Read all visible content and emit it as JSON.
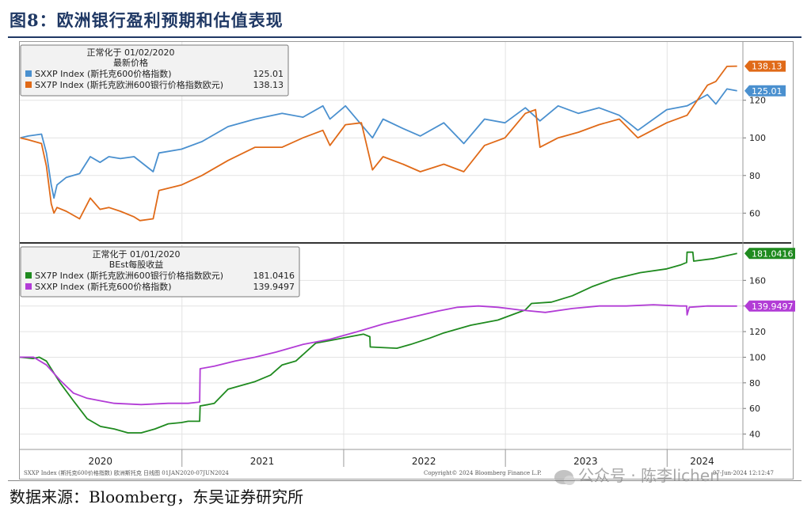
{
  "figure_title": "图8：欧洲银行盈利预期和估值表现",
  "source_note": "数据来源：Bloomberg，东吴证券研究所",
  "footer": {
    "left_text": "SXXP Index (斯托克600价格指数) 欧洲斯托克   日线图 01JAN2020-07JUN2024",
    "copyright": "Copyright© 2024 Bloomberg Finance L.P.",
    "timestamp": "07-Jun-2024 12:12:47"
  },
  "watermark": "公众号 · 陈李lichen",
  "colors": {
    "blue": "#4a90cf",
    "orange": "#e06a18",
    "green": "#1f8a1f",
    "purple": "#b23cd6"
  },
  "chart_data": [
    {
      "type": "line",
      "legend": {
        "header1": "正常化于 01/02/2020",
        "header2": "最新价格",
        "placement": "top-left"
      },
      "series": [
        {
          "name": "SXXP Index (斯托克600价格指数)",
          "last_label": "125.01",
          "color": "#4a90cf",
          "points": [
            [
              "2020-01-02",
              100
            ],
            [
              "2020-01-20",
              101
            ],
            [
              "2020-02-19",
              102
            ],
            [
              "2020-03-01",
              92
            ],
            [
              "2020-03-12",
              75
            ],
            [
              "2020-03-18",
              68
            ],
            [
              "2020-03-25",
              75
            ],
            [
              "2020-04-15",
              79
            ],
            [
              "2020-05-15",
              81
            ],
            [
              "2020-06-08",
              90
            ],
            [
              "2020-06-30",
              87
            ],
            [
              "2020-07-20",
              90
            ],
            [
              "2020-08-15",
              89
            ],
            [
              "2020-09-15",
              90
            ],
            [
              "2020-10-28",
              82
            ],
            [
              "2020-11-10",
              92
            ],
            [
              "2020-12-31",
              94
            ],
            [
              "2021-02-15",
              98
            ],
            [
              "2021-04-15",
              106
            ],
            [
              "2021-06-15",
              110
            ],
            [
              "2021-08-15",
              113
            ],
            [
              "2021-10-01",
              111
            ],
            [
              "2021-11-15",
              117
            ],
            [
              "2021-12-01",
              110
            ],
            [
              "2022-01-05",
              117
            ],
            [
              "2022-03-07",
              100
            ],
            [
              "2022-03-31",
              110
            ],
            [
              "2022-05-15",
              105
            ],
            [
              "2022-06-23",
              101
            ],
            [
              "2022-08-15",
              108
            ],
            [
              "2022-09-29",
              97
            ],
            [
              "2022-11-15",
              110
            ],
            [
              "2022-12-31",
              108
            ],
            [
              "2023-02-15",
              116
            ],
            [
              "2023-03-20",
              109
            ],
            [
              "2023-04-30",
              117
            ],
            [
              "2023-06-15",
              113
            ],
            [
              "2023-07-31",
              116
            ],
            [
              "2023-09-15",
              112
            ],
            [
              "2023-10-27",
              104
            ],
            [
              "2023-12-31",
              115
            ],
            [
              "2024-02-15",
              117
            ],
            [
              "2024-04-01",
              123
            ],
            [
              "2024-04-20",
              118
            ],
            [
              "2024-05-15",
              126
            ],
            [
              "2024-06-07",
              125.01
            ]
          ]
        },
        {
          "name": "SX7P Index (斯托克欧洲600银行价格指数欧元)",
          "last_label": "138.13",
          "color": "#e06a18",
          "points": [
            [
              "2020-01-02",
              100
            ],
            [
              "2020-01-20",
              99
            ],
            [
              "2020-02-19",
              97
            ],
            [
              "2020-03-01",
              85
            ],
            [
              "2020-03-12",
              65
            ],
            [
              "2020-03-18",
              60
            ],
            [
              "2020-03-25",
              63
            ],
            [
              "2020-04-15",
              61
            ],
            [
              "2020-05-15",
              57
            ],
            [
              "2020-06-08",
              68
            ],
            [
              "2020-06-30",
              62
            ],
            [
              "2020-07-20",
              63
            ],
            [
              "2020-08-15",
              61
            ],
            [
              "2020-09-15",
              58
            ],
            [
              "2020-09-28",
              56
            ],
            [
              "2020-10-28",
              57
            ],
            [
              "2020-11-10",
              72
            ],
            [
              "2020-12-31",
              75
            ],
            [
              "2021-02-15",
              80
            ],
            [
              "2021-04-15",
              88
            ],
            [
              "2021-06-15",
              95
            ],
            [
              "2021-08-15",
              95
            ],
            [
              "2021-10-01",
              100
            ],
            [
              "2021-11-15",
              104
            ],
            [
              "2021-12-01",
              96
            ],
            [
              "2022-01-05",
              107
            ],
            [
              "2022-02-10",
              108
            ],
            [
              "2022-03-07",
              83
            ],
            [
              "2022-03-31",
              90
            ],
            [
              "2022-05-15",
              86
            ],
            [
              "2022-06-23",
              82
            ],
            [
              "2022-08-15",
              86
            ],
            [
              "2022-09-29",
              82
            ],
            [
              "2022-11-15",
              96
            ],
            [
              "2022-12-31",
              100
            ],
            [
              "2023-02-15",
              113
            ],
            [
              "2023-03-10",
              115
            ],
            [
              "2023-03-20",
              95
            ],
            [
              "2023-04-30",
              100
            ],
            [
              "2023-06-15",
              103
            ],
            [
              "2023-07-31",
              107
            ],
            [
              "2023-09-15",
              110
            ],
            [
              "2023-10-27",
              100
            ],
            [
              "2023-12-31",
              108
            ],
            [
              "2024-02-15",
              112
            ],
            [
              "2024-03-15",
              122
            ],
            [
              "2024-04-01",
              128
            ],
            [
              "2024-04-20",
              130
            ],
            [
              "2024-05-15",
              138
            ],
            [
              "2024-06-07",
              138.13
            ]
          ]
        }
      ],
      "y_ticks": [
        60,
        80,
        100,
        120
      ],
      "ylim": [
        45,
        151
      ]
    },
    {
      "type": "line",
      "legend": {
        "header1": "正常化于 01/01/2020",
        "header2": "BEst每股收益",
        "placement": "top-left"
      },
      "series": [
        {
          "name": "SX7P Index (斯托克欧洲600银行价格指数欧元)",
          "last_label": "181.0416",
          "color": "#1f8a1f",
          "points": [
            [
              "2020-01-01",
              100
            ],
            [
              "2020-01-31",
              99
            ],
            [
              "2020-02-14",
              100
            ],
            [
              "2020-03-01",
              97
            ],
            [
              "2020-04-01",
              80
            ],
            [
              "2020-05-01",
              66
            ],
            [
              "2020-06-01",
              52
            ],
            [
              "2020-07-01",
              46
            ],
            [
              "2020-08-01",
              44
            ],
            [
              "2020-09-01",
              41
            ],
            [
              "2020-10-01",
              41
            ],
            [
              "2020-11-01",
              44
            ],
            [
              "2020-12-01",
              48
            ],
            [
              "2020-12-31",
              49
            ],
            [
              "2021-01-15",
              50
            ],
            [
              "2021-02-10",
              50
            ],
            [
              "2021-02-11",
              62
            ],
            [
              "2021-03-01",
              63
            ],
            [
              "2021-03-15",
              64
            ],
            [
              "2021-04-15",
              75
            ],
            [
              "2021-05-15",
              78
            ],
            [
              "2021-06-15",
              81
            ],
            [
              "2021-07-20",
              86
            ],
            [
              "2021-08-15",
              94
            ],
            [
              "2021-09-15",
              97
            ],
            [
              "2021-10-30",
              111
            ],
            [
              "2021-12-01",
              113
            ],
            [
              "2022-01-15",
              116
            ],
            [
              "2022-02-15",
              118
            ],
            [
              "2022-03-01",
              116
            ],
            [
              "2022-03-02",
              108
            ],
            [
              "2022-05-01",
              107
            ],
            [
              "2022-06-01",
              110
            ],
            [
              "2022-07-15",
              115
            ],
            [
              "2022-08-15",
              119
            ],
            [
              "2022-10-15",
              125
            ],
            [
              "2022-12-15",
              129
            ],
            [
              "2023-02-15",
              137
            ],
            [
              "2023-03-01",
              142
            ],
            [
              "2023-04-15",
              143
            ],
            [
              "2023-06-01",
              148
            ],
            [
              "2023-07-15",
              155
            ],
            [
              "2023-09-01",
              161
            ],
            [
              "2023-11-01",
              166
            ],
            [
              "2023-12-31",
              169
            ],
            [
              "2024-01-31",
              172
            ],
            [
              "2024-02-14",
              174
            ],
            [
              "2024-02-15",
              182
            ],
            [
              "2024-02-28",
              182
            ],
            [
              "2024-03-01",
              175
            ],
            [
              "2024-04-15",
              177
            ],
            [
              "2024-06-07",
              181.0416
            ]
          ]
        },
        {
          "name": "SXXP Index (斯托克600价格指数)",
          "last_label": "139.9497",
          "color": "#b23cd6",
          "points": [
            [
              "2020-01-01",
              100
            ],
            [
              "2020-02-01",
              100
            ],
            [
              "2020-03-01",
              94
            ],
            [
              "2020-04-01",
              82
            ],
            [
              "2020-05-01",
              72
            ],
            [
              "2020-06-01",
              68
            ],
            [
              "2020-07-01",
              66
            ],
            [
              "2020-08-01",
              64
            ],
            [
              "2020-10-01",
              63
            ],
            [
              "2020-12-01",
              64
            ],
            [
              "2020-12-31",
              64
            ],
            [
              "2021-01-15",
              64
            ],
            [
              "2021-02-10",
              65
            ],
            [
              "2021-02-11",
              91
            ],
            [
              "2021-03-15",
              93
            ],
            [
              "2021-05-01",
              97
            ],
            [
              "2021-06-15",
              100
            ],
            [
              "2021-08-01",
              104
            ],
            [
              "2021-10-01",
              110
            ],
            [
              "2021-12-01",
              114
            ],
            [
              "2022-02-01",
              120
            ],
            [
              "2022-04-01",
              126
            ],
            [
              "2022-06-01",
              131
            ],
            [
              "2022-08-01",
              136
            ],
            [
              "2022-09-15",
              139
            ],
            [
              "2022-11-01",
              140
            ],
            [
              "2022-12-15",
              139
            ],
            [
              "2023-02-01",
              137
            ],
            [
              "2023-04-01",
              135
            ],
            [
              "2023-06-01",
              138
            ],
            [
              "2023-08-01",
              140
            ],
            [
              "2023-10-01",
              140
            ],
            [
              "2023-12-01",
              141
            ],
            [
              "2024-01-31",
              140
            ],
            [
              "2024-02-14",
              140
            ],
            [
              "2024-02-15",
              133
            ],
            [
              "2024-02-20",
              139
            ],
            [
              "2024-04-01",
              140
            ],
            [
              "2024-06-07",
              139.9497
            ]
          ]
        }
      ],
      "y_ticks": [
        40,
        60,
        80,
        100,
        120,
        140,
        160
      ],
      "ylim": [
        28,
        188
      ]
    }
  ],
  "x_axis": {
    "labels": [
      "2020",
      "2021",
      "2022",
      "2023",
      "2024"
    ],
    "label_dates": [
      "2020-07-01",
      "2021-07-01",
      "2022-07-01",
      "2023-07-01",
      "2024-03-20"
    ],
    "domain": [
      "2020-01-01",
      "2024-06-20"
    ]
  }
}
